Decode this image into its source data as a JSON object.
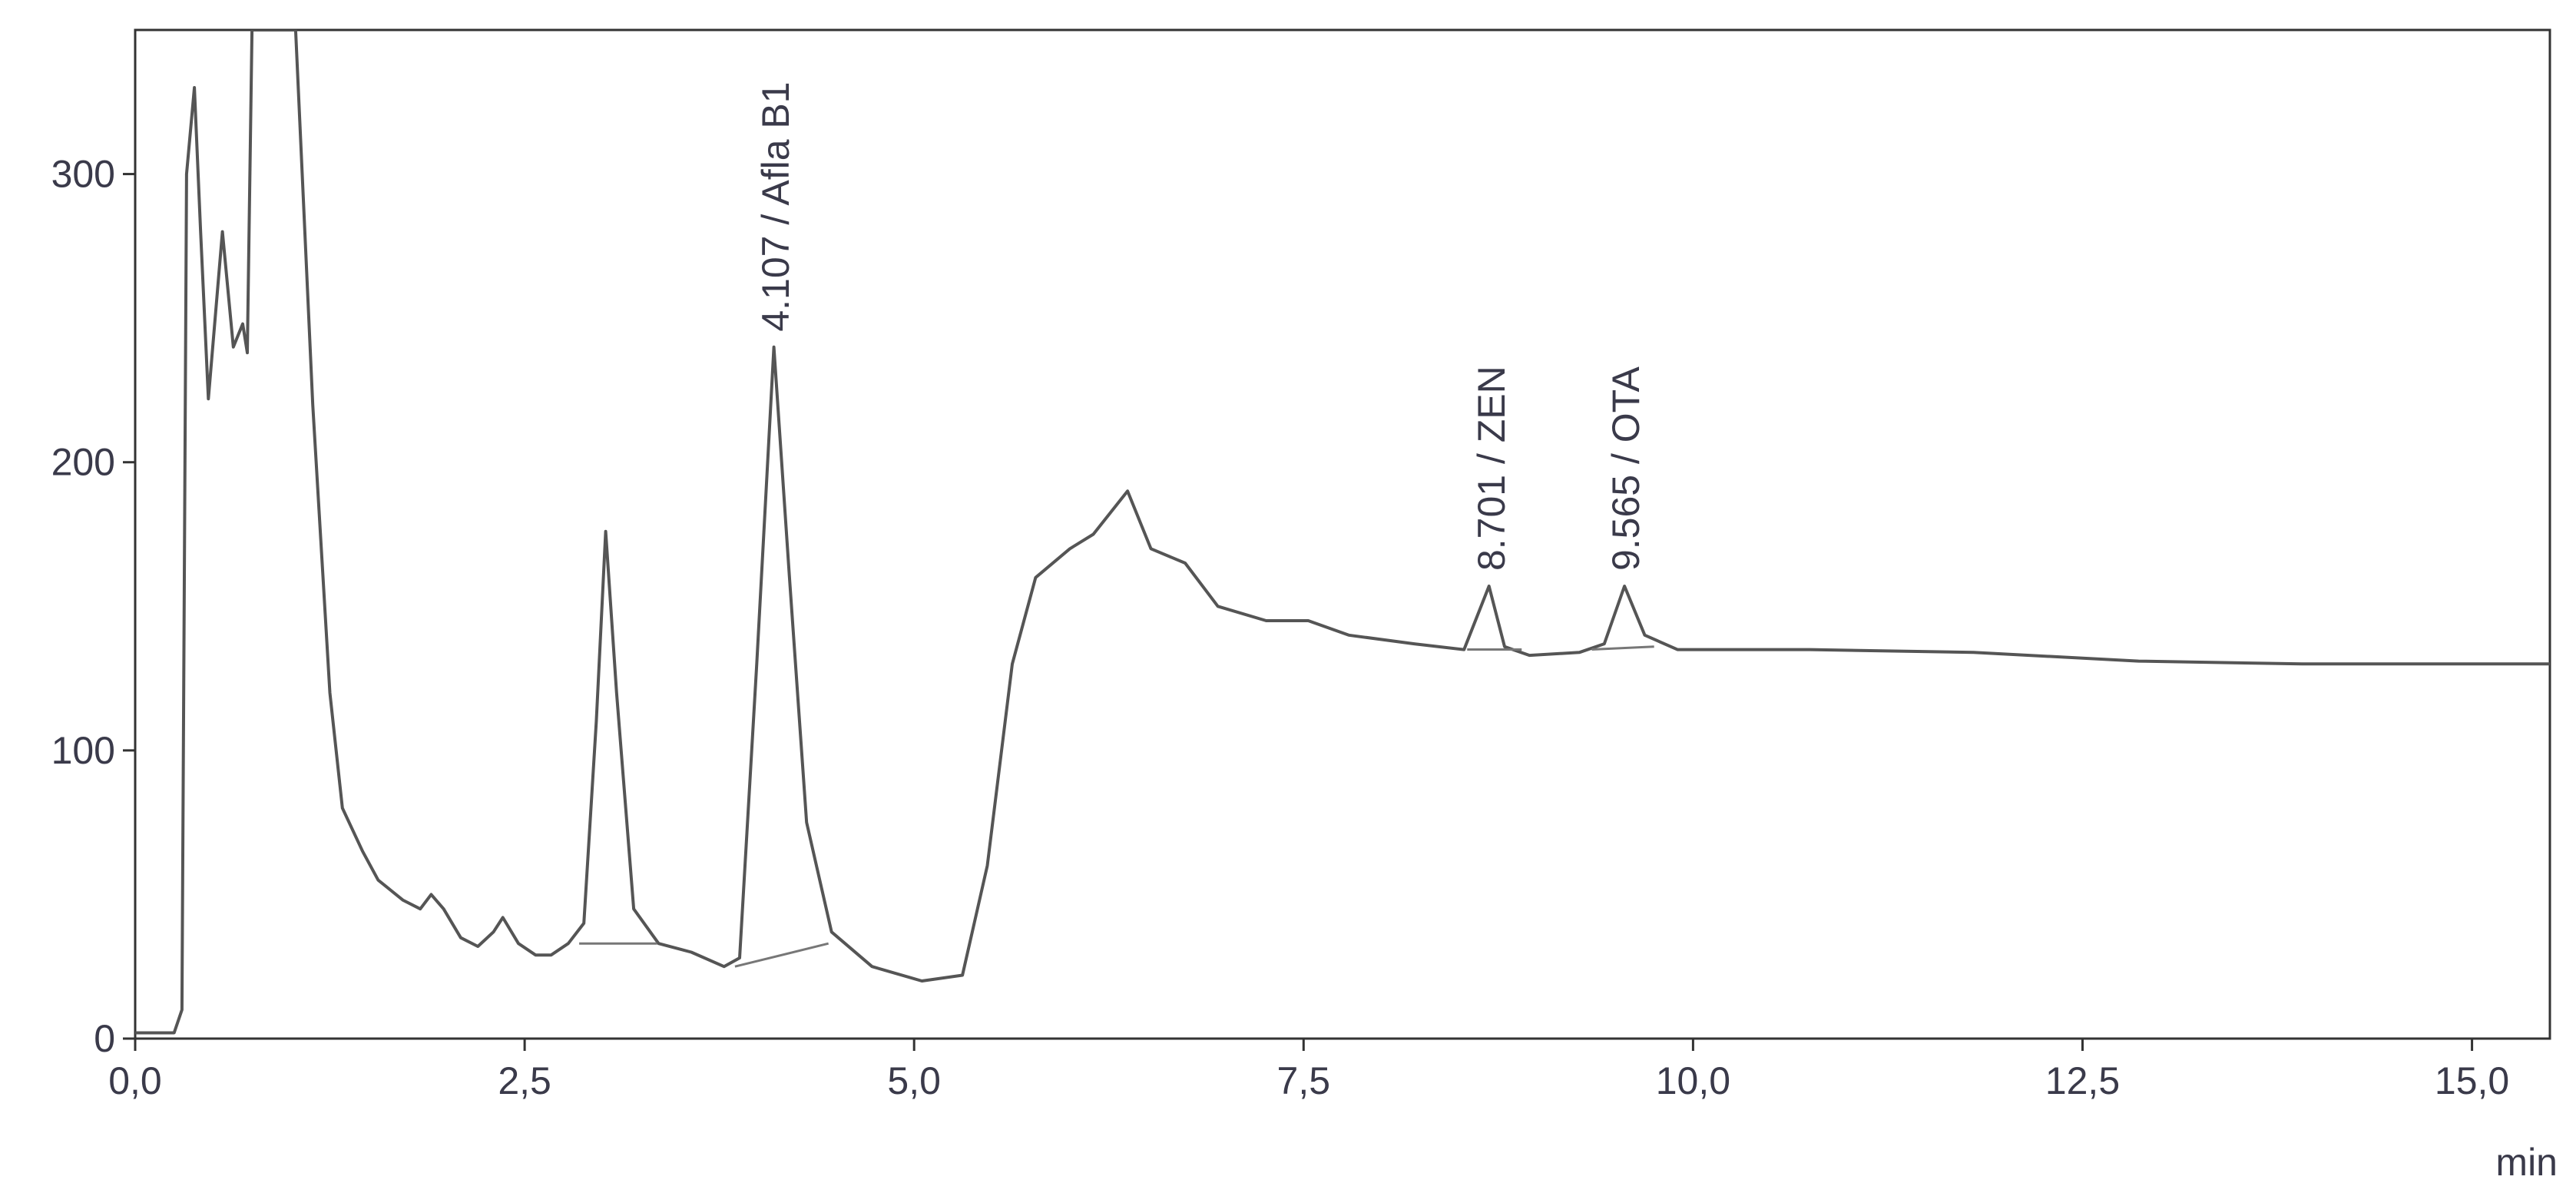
{
  "chart_data": {
    "type": "line",
    "x_unit_label": "min",
    "xlim": [
      0,
      15.5
    ],
    "ylim": [
      0,
      350
    ],
    "xticks": [
      {
        "value": 0,
        "label": "0,0"
      },
      {
        "value": 2.5,
        "label": "2,5"
      },
      {
        "value": 5,
        "label": "5,0"
      },
      {
        "value": 7.5,
        "label": "7,5"
      },
      {
        "value": 10,
        "label": "10,0"
      },
      {
        "value": 12.5,
        "label": "12,5"
      },
      {
        "value": 15,
        "label": "15,0"
      }
    ],
    "yticks": [
      0,
      100,
      200,
      300
    ],
    "series": [
      {
        "color": "#555555",
        "x": [
          0,
          0.25,
          0.3,
          0.33,
          0.38,
          0.42,
          0.47,
          0.56,
          0.63,
          0.69,
          0.72,
          0.75,
          1.03,
          1.14,
          1.25,
          1.33,
          1.46,
          1.56,
          1.72,
          1.83,
          1.9,
          1.98,
          2.09,
          2.2,
          2.3,
          2.36,
          2.46,
          2.57,
          2.67,
          2.78,
          2.88,
          2.96,
          3.02,
          3.09,
          3.2,
          3.36,
          3.57,
          3.78,
          3.88,
          3.99,
          4.1,
          4.2,
          4.31,
          4.47,
          4.73,
          5.05,
          5.31,
          5.47,
          5.63,
          5.78,
          6.0,
          6.15,
          6.37,
          6.52,
          6.74,
          6.95,
          7.26,
          7.53,
          7.79,
          8.21,
          8.53,
          8.69,
          8.79,
          8.95,
          9.27,
          9.43,
          9.56,
          9.69,
          9.9,
          10.75,
          11.8,
          12.86,
          13.91,
          15.5
        ],
        "values": [
          2,
          2,
          10,
          300,
          330,
          280,
          222,
          280,
          240,
          248,
          238,
          350,
          350,
          220,
          120,
          80,
          65,
          55,
          48,
          45,
          50,
          45,
          35,
          32,
          37,
          42,
          33,
          29,
          29,
          33,
          40,
          110,
          176,
          120,
          45,
          33,
          30,
          25,
          28,
          130,
          240,
          160,
          75,
          37,
          25,
          20,
          22,
          60,
          130,
          160,
          170,
          175,
          190,
          170,
          165,
          150,
          145,
          145,
          140,
          137,
          135,
          157,
          136,
          133,
          134,
          137,
          157,
          140,
          135,
          135,
          134,
          131,
          130,
          130
        ]
      }
    ],
    "integration_baselines": [
      {
        "x": [
          2.85,
          3.35
        ],
        "y": [
          33,
          33
        ]
      },
      {
        "x": [
          3.85,
          4.45
        ],
        "y": [
          25,
          33
        ]
      },
      {
        "x": [
          8.55,
          8.9
        ],
        "y": [
          135,
          135
        ]
      },
      {
        "x": [
          9.35,
          9.75
        ],
        "y": [
          135,
          136
        ]
      }
    ],
    "annotations": [
      {
        "text": "4.107 / Afla B1",
        "x": 4.107
      },
      {
        "text": "8.701 / ZEN",
        "x": 8.701
      },
      {
        "text": "9.565 / OTA",
        "x": 9.565
      }
    ]
  }
}
